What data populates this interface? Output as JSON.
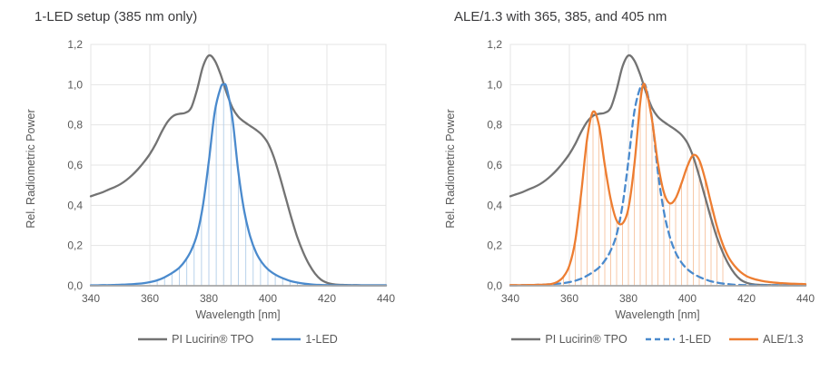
{
  "colors": {
    "background": "#ffffff",
    "title_text": "#3a3a3c",
    "axis_text": "#595959",
    "gridline": "#e4e4e4",
    "plot_border": "#e4e4e4",
    "x_axis_line": "#a6a6a6",
    "tpo_gray": "#737373",
    "led_blue": "#4a8acd",
    "ale_orange": "#ed7d31",
    "dropline_blue": "#b9d2eb",
    "dropline_orange": "#f7c9a9"
  },
  "chart_data": [
    {
      "type": "line",
      "title": "1-LED setup (385 nm only)",
      "xlabel": "Wavelength [nm]",
      "ylabel": "Rel. Radiometric Power",
      "xlim": [
        340,
        440
      ],
      "ylim": [
        0,
        1.2
      ],
      "grid": "both",
      "legend_position": "bottom",
      "xticks": [
        340,
        360,
        380,
        400,
        420,
        440
      ],
      "xtick_labels": [
        "340",
        "360",
        "380",
        "400",
        "420",
        "440"
      ],
      "yticks": [
        0,
        0.2,
        0.4,
        0.6,
        0.8,
        1.0,
        1.2
      ],
      "ytick_labels": [
        "0,0",
        "0,2",
        "0,4",
        "0,6",
        "0,8",
        "1,0",
        "1,2"
      ],
      "series": [
        {
          "name": "PI Lucirin® TPO",
          "color": "#737373",
          "dash": "solid",
          "x": [
            340,
            342,
            344,
            346,
            348,
            350,
            352,
            354,
            356,
            358,
            360,
            362,
            364,
            366,
            368,
            370,
            372,
            374,
            376,
            378,
            380,
            382,
            384,
            386,
            388,
            390,
            392,
            394,
            396,
            398,
            400,
            402,
            404,
            406,
            408,
            410,
            412,
            414,
            416,
            418,
            420,
            422,
            424,
            426,
            428,
            430,
            432,
            434,
            436,
            438,
            440
          ],
          "y": [
            0.445,
            0.455,
            0.465,
            0.478,
            0.49,
            0.505,
            0.525,
            0.55,
            0.58,
            0.615,
            0.655,
            0.705,
            0.765,
            0.815,
            0.845,
            0.855,
            0.86,
            0.885,
            0.975,
            1.09,
            1.145,
            1.12,
            1.05,
            0.96,
            0.885,
            0.84,
            0.815,
            0.795,
            0.775,
            0.75,
            0.71,
            0.64,
            0.545,
            0.44,
            0.335,
            0.24,
            0.165,
            0.105,
            0.06,
            0.03,
            0.015,
            0.008,
            0.005,
            0.004,
            0.003,
            0.003,
            0.002,
            0.002,
            0.002,
            0.002,
            0.002
          ]
        },
        {
          "name": "1-LED",
          "color": "#4a8acd",
          "dash": "solid",
          "droplines": {
            "from": 362.5,
            "to": 410,
            "step": 2.5,
            "color": "#b9d2eb"
          },
          "x": [
            340,
            342,
            344,
            346,
            348,
            350,
            352,
            354,
            356,
            358,
            360,
            362,
            364,
            366,
            368,
            370,
            372,
            374,
            376,
            378,
            380,
            382,
            384,
            385,
            386,
            388,
            390,
            392,
            394,
            396,
            398,
            400,
            402,
            404,
            406,
            408,
            410,
            412,
            414,
            416,
            418,
            420,
            422,
            424,
            426,
            428,
            430,
            432,
            434,
            436,
            438,
            440
          ],
          "y": [
            0.002,
            0.002,
            0.003,
            0.003,
            0.004,
            0.005,
            0.006,
            0.008,
            0.01,
            0.013,
            0.018,
            0.025,
            0.035,
            0.05,
            0.068,
            0.09,
            0.125,
            0.175,
            0.255,
            0.4,
            0.62,
            0.865,
            0.985,
            1.0,
            0.985,
            0.83,
            0.565,
            0.37,
            0.245,
            0.165,
            0.115,
            0.082,
            0.06,
            0.044,
            0.032,
            0.022,
            0.016,
            0.011,
            0.008,
            0.005,
            0.004,
            0.003,
            0.002,
            0.002,
            0.002,
            0.002,
            0.002,
            0.002,
            0.002,
            0.002,
            0.002,
            0.002
          ]
        }
      ],
      "legend": [
        {
          "label": "PI Lucirin® TPO",
          "color": "#737373",
          "dash": "solid"
        },
        {
          "label": "1-LED",
          "color": "#4a8acd",
          "dash": "solid"
        }
      ]
    },
    {
      "type": "line",
      "title": "ALE/1.3 with 365, 385, and 405 nm",
      "xlabel": "Wavelength [nm]",
      "ylabel": "Rel. Radiometric Power",
      "xlim": [
        340,
        440
      ],
      "ylim": [
        0,
        1.2
      ],
      "grid": "both",
      "legend_position": "bottom",
      "xticks": [
        340,
        360,
        380,
        400,
        420,
        440
      ],
      "xtick_labels": [
        "340",
        "360",
        "380",
        "400",
        "420",
        "440"
      ],
      "yticks": [
        0,
        0.2,
        0.4,
        0.6,
        0.8,
        1.0,
        1.2
      ],
      "ytick_labels": [
        "0,0",
        "0,2",
        "0,4",
        "0,6",
        "0,8",
        "1,0",
        "1,2"
      ],
      "series": [
        {
          "name": "PI Lucirin® TPO",
          "color": "#737373",
          "dash": "solid",
          "x": [
            340,
            342,
            344,
            346,
            348,
            350,
            352,
            354,
            356,
            358,
            360,
            362,
            364,
            366,
            368,
            370,
            372,
            374,
            376,
            378,
            380,
            382,
            384,
            386,
            388,
            390,
            392,
            394,
            396,
            398,
            400,
            402,
            404,
            406,
            408,
            410,
            412,
            414,
            416,
            418,
            420,
            422,
            424,
            426,
            428,
            430,
            432,
            434,
            436,
            438,
            440
          ],
          "y": [
            0.445,
            0.455,
            0.465,
            0.478,
            0.49,
            0.505,
            0.525,
            0.55,
            0.58,
            0.615,
            0.655,
            0.705,
            0.765,
            0.815,
            0.845,
            0.855,
            0.86,
            0.885,
            0.975,
            1.09,
            1.145,
            1.12,
            1.05,
            0.96,
            0.885,
            0.84,
            0.815,
            0.795,
            0.775,
            0.75,
            0.71,
            0.64,
            0.545,
            0.44,
            0.335,
            0.24,
            0.165,
            0.105,
            0.06,
            0.03,
            0.015,
            0.008,
            0.005,
            0.004,
            0.003,
            0.003,
            0.002,
            0.002,
            0.002,
            0.002,
            0.002
          ]
        },
        {
          "name": "1-LED",
          "color": "#4a8acd",
          "dash": "dashed",
          "x": [
            340,
            342,
            344,
            346,
            348,
            350,
            352,
            354,
            356,
            358,
            360,
            362,
            364,
            366,
            368,
            370,
            372,
            374,
            376,
            378,
            380,
            382,
            384,
            385,
            386,
            388,
            390,
            392,
            394,
            396,
            398,
            400,
            402,
            404,
            406,
            408,
            410,
            412,
            414,
            416,
            418,
            420,
            422,
            424,
            426,
            428,
            430,
            432,
            434,
            436,
            438,
            440
          ],
          "y": [
            0.002,
            0.002,
            0.003,
            0.003,
            0.004,
            0.005,
            0.006,
            0.008,
            0.01,
            0.013,
            0.018,
            0.025,
            0.035,
            0.05,
            0.068,
            0.09,
            0.125,
            0.175,
            0.255,
            0.4,
            0.62,
            0.865,
            0.985,
            1.0,
            0.985,
            0.83,
            0.565,
            0.37,
            0.245,
            0.165,
            0.115,
            0.082,
            0.06,
            0.044,
            0.032,
            0.022,
            0.016,
            0.011,
            0.008,
            0.005,
            0.004,
            0.003,
            0.002,
            0.002,
            0.002,
            0.002,
            0.002,
            0.002,
            0.002,
            0.002,
            0.002,
            0.002
          ]
        },
        {
          "name": "ALE/1.3",
          "color": "#ed7d31",
          "dash": "solid",
          "droplines": {
            "from": 358,
            "to": 412,
            "step": 2,
            "color": "#f7c9a9"
          },
          "x": [
            340,
            342,
            344,
            346,
            348,
            350,
            352,
            354,
            356,
            358,
            360,
            362,
            364,
            366,
            368,
            370,
            372,
            374,
            376,
            378,
            380,
            382,
            384,
            385,
            386,
            388,
            390,
            392,
            394,
            396,
            398,
            400,
            402,
            404,
            406,
            408,
            410,
            412,
            414,
            416,
            418,
            420,
            422,
            424,
            426,
            428,
            430,
            432,
            434,
            436,
            438,
            440
          ],
          "y": [
            0.003,
            0.003,
            0.003,
            0.004,
            0.004,
            0.005,
            0.006,
            0.009,
            0.02,
            0.045,
            0.1,
            0.225,
            0.46,
            0.73,
            0.865,
            0.8,
            0.6,
            0.43,
            0.325,
            0.31,
            0.385,
            0.6,
            0.91,
            1.0,
            0.975,
            0.825,
            0.61,
            0.465,
            0.41,
            0.435,
            0.51,
            0.595,
            0.65,
            0.625,
            0.53,
            0.41,
            0.295,
            0.205,
            0.14,
            0.098,
            0.068,
            0.048,
            0.036,
            0.028,
            0.022,
            0.018,
            0.015,
            0.013,
            0.011,
            0.01,
            0.009,
            0.008
          ]
        }
      ],
      "legend": [
        {
          "label": "PI Lucirin® TPO",
          "color": "#737373",
          "dash": "solid"
        },
        {
          "label": "1-LED",
          "color": "#4a8acd",
          "dash": "dashed"
        },
        {
          "label": "ALE/1.3",
          "color": "#ed7d31",
          "dash": "solid"
        }
      ]
    }
  ]
}
